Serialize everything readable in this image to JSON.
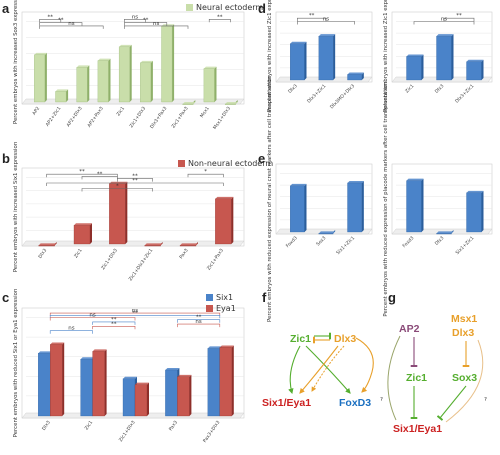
{
  "colors": {
    "green": "#c9deaa",
    "green_edge": "#8fb06a",
    "red": "#c7574f",
    "red_edge": "#8e2f2a",
    "blue": "#4a83c9",
    "blue_edge": "#2b5e9c",
    "net_green": "#55ae2f",
    "net_orange": "#e8a02b",
    "net_red": "#cc2222",
    "net_blue": "#1a6fc0",
    "net_purple": "#8a4a78",
    "net_olive": "#9aa56b"
  },
  "panel_labels": [
    "a",
    "b",
    "c",
    "d",
    "e",
    "f",
    "g"
  ],
  "chart_data": [
    {
      "id": "a",
      "type": "bar",
      "legend": [
        "Neural ectoderm"
      ],
      "legend_placement": "top-right",
      "ylabel": "Percent embryos with increased Sox3 expression",
      "ylim": [
        0,
        70
      ],
      "categories": [
        "AP2",
        "AP2+Zic1",
        "AP2+Dlx3",
        "AP2+Pax3",
        "Zic1",
        "Zic1+Dlx3",
        "Dlx3+Pax3",
        "Zic1+Pax3",
        "Msx1",
        "Msx1+Dlx3"
      ],
      "series": [
        {
          "name": "Neural ectoderm",
          "values": [
            43,
            11,
            32,
            38,
            50,
            36,
            68,
            0,
            31,
            0
          ]
        }
      ],
      "significance": [
        "**",
        "**",
        "ns",
        "ns",
        "**",
        "ns",
        "**"
      ]
    },
    {
      "id": "b",
      "type": "bar",
      "legend": [
        "Non-neural ectoderm"
      ],
      "legend_placement": "top-right",
      "ylabel": "Percent embryos with increased Six1 expression",
      "ylim": [
        0,
        35
      ],
      "categories": [
        "Dlx3",
        "Zic1",
        "Zic1+Dlx3",
        "Zic1+Dlx3+Zic1",
        "Pax3",
        "Zic1+Pax3"
      ],
      "series": [
        {
          "name": "Non-neural ectoderm",
          "values": [
            0.3,
            11,
            33,
            0.3,
            0.3,
            25
          ]
        }
      ],
      "significance": [
        "**",
        "**",
        "**",
        "*",
        "*",
        "**"
      ]
    },
    {
      "id": "c",
      "type": "bar",
      "legend": [
        "Six1",
        "Eya1"
      ],
      "legend_placement": "top-right",
      "ylabel": "Percent embryos with reduced Six1 or Eya1 expression",
      "ylim": [
        0,
        100
      ],
      "categories": [
        "Dlx3",
        "Zic1",
        "Zic1+Dlx3",
        "Pax3",
        "Pax3+Dlx3"
      ],
      "series": [
        {
          "name": "Six1",
          "values": [
            66,
            60,
            40,
            49,
            71
          ]
        },
        {
          "name": "Eya1",
          "values": [
            75,
            68,
            34,
            42,
            72
          ]
        }
      ],
      "significance": [
        "ns",
        "**",
        "ns",
        "**",
        "**",
        "**",
        "ns",
        "ns"
      ]
    },
    {
      "id": "d1",
      "type": "bar",
      "ylabel": "Percent embryos with increased Zic1 expression",
      "ylim": [
        0,
        100
      ],
      "categories": [
        "Dlx3",
        "Dlx3+Zic1",
        "Dlx3MO+Dlx3"
      ],
      "series": [
        {
          "name": "",
          "values": [
            66,
            79,
            13
          ]
        }
      ],
      "significance": [
        "**",
        "ns"
      ]
    },
    {
      "id": "d2",
      "type": "bar",
      "ylabel": "Percent embryos with increased Zic1 expression",
      "ylim": [
        0,
        100
      ],
      "categories": [
        "Zic1",
        "Dlx3",
        "Dlx3+Zic1"
      ],
      "series": [
        {
          "name": "",
          "values": [
            44,
            79,
            35
          ]
        }
      ],
      "significance": [
        "ns",
        "**"
      ]
    },
    {
      "id": "e1",
      "type": "bar",
      "ylabel": "Percent embryos with reduced expression of neural crest markers after cell transplantation",
      "ylim": [
        0,
        100
      ],
      "categories": [
        "Foxd3",
        "Sox3",
        "Six1+Zic1"
      ],
      "series": [
        {
          "name": "",
          "values": [
            83,
            1,
            88
          ]
        }
      ]
    },
    {
      "id": "e2",
      "type": "bar",
      "ylabel": "Percent embryos with reduced expression of placode markers after cell transplantation",
      "ylim": [
        0,
        100
      ],
      "categories": [
        "Foxd3",
        "Dlx3",
        "Six1+Zic1"
      ],
      "series": [
        {
          "name": "",
          "values": [
            92,
            1,
            71
          ]
        }
      ]
    }
  ],
  "network_f": {
    "nodes": [
      "Zic1",
      "Dlx3",
      "Six1/Eya1",
      "FoxD3"
    ]
  },
  "network_g": {
    "nodes": [
      "AP2",
      "Msx1",
      "Dlx3",
      "Zic1",
      "Sox3",
      "Six1/Eya1"
    ],
    "question_marks": [
      "?",
      "?"
    ]
  }
}
